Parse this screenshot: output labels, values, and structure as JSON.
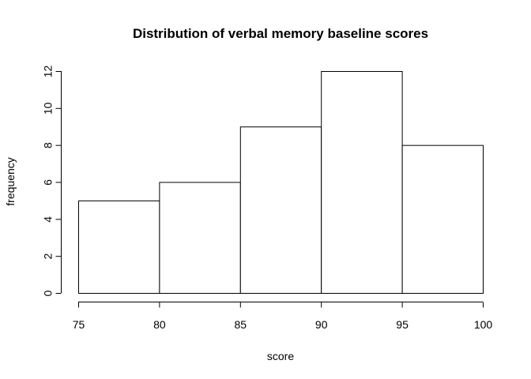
{
  "chart_data": {
    "type": "bar",
    "title": "Distribution of verbal memory baseline scores",
    "xlabel": "score",
    "ylabel": "frequency",
    "bins": [
      {
        "from": 75,
        "to": 80,
        "value": 5
      },
      {
        "from": 80,
        "to": 85,
        "value": 6
      },
      {
        "from": 85,
        "to": 90,
        "value": 9
      },
      {
        "from": 90,
        "to": 95,
        "value": 12
      },
      {
        "from": 95,
        "to": 100,
        "value": 8
      }
    ],
    "xlim": [
      75,
      100
    ],
    "ylim": [
      0,
      12
    ],
    "x_ticks": [
      75,
      80,
      85,
      90,
      95,
      100
    ],
    "y_ticks": [
      0,
      2,
      4,
      6,
      8,
      10,
      12
    ],
    "grid": false,
    "bar_fill": "#ffffff",
    "bar_stroke": "#000000"
  }
}
